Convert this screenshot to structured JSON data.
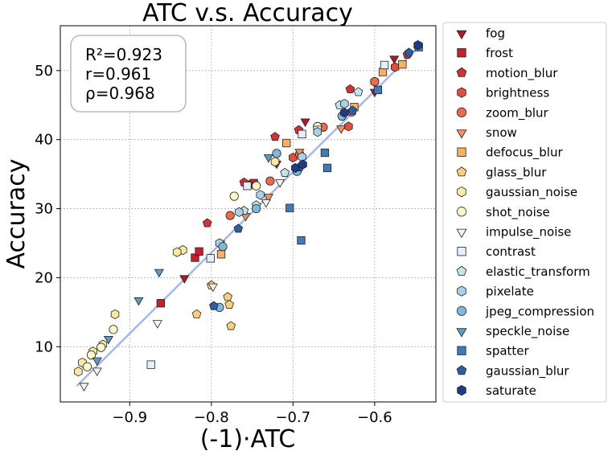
{
  "chart_data": {
    "type": "scatter",
    "title": "ATC  v.s.  Accuracy",
    "xlabel": "(-1)·ATC",
    "ylabel": "Accuracy",
    "xlim": [
      -0.985,
      -0.525
    ],
    "ylim": [
      2,
      56.5
    ],
    "xticks": [
      -0.9,
      -0.8,
      -0.7,
      -0.6
    ],
    "xtick_labels": [
      "−0.9",
      "−0.8",
      "−0.7",
      "−0.6"
    ],
    "yticks": [
      10,
      20,
      30,
      40,
      50
    ],
    "ytick_labels": [
      "10",
      "20",
      "30",
      "40",
      "50"
    ],
    "grid": true,
    "legend_position": "outside-right",
    "stats": [
      "R²=0.923",
      "r=0.961",
      "ρ=0.968"
    ],
    "fit_line": {
      "x": [
        -0.965,
        -0.545
      ],
      "y": [
        4.3,
        53.5
      ],
      "color": "#a3b7ec"
    },
    "series": [
      {
        "name": "fog",
        "marker": "triangle-down",
        "color": "#b2182b",
        "points": [
          [
            -0.833,
            20.0
          ],
          [
            -0.72,
            36.6
          ],
          [
            -0.685,
            42.7
          ],
          [
            -0.6,
            47.0
          ],
          [
            -0.576,
            51.8
          ]
        ]
      },
      {
        "name": "frost",
        "marker": "square",
        "color": "#c4202e",
        "points": [
          [
            -0.862,
            16.3
          ],
          [
            -0.82,
            22.9
          ],
          [
            -0.815,
            23.8
          ],
          [
            -0.753,
            33.5
          ],
          [
            -0.748,
            33.7
          ]
        ]
      },
      {
        "name": "motion_blur",
        "marker": "pentagon",
        "color": "#d4303a",
        "points": [
          [
            -0.805,
            27.9
          ],
          [
            -0.76,
            33.8
          ],
          [
            -0.722,
            40.4
          ],
          [
            -0.693,
            41.4
          ],
          [
            -0.63,
            47.3
          ],
          [
            -0.56,
            52.3
          ]
        ]
      },
      {
        "name": "brightness",
        "marker": "hexagon",
        "color": "#e04e3d",
        "points": [
          [
            -0.7,
            37.4
          ],
          [
            -0.67,
            41.7
          ],
          [
            -0.632,
            41.9
          ],
          [
            -0.6,
            48.4
          ],
          [
            -0.575,
            50.5
          ],
          [
            -0.547,
            53.6
          ]
        ]
      },
      {
        "name": "zoom_blur",
        "marker": "circle",
        "color": "#ed6a4a",
        "points": [
          [
            -0.777,
            29.0
          ],
          [
            -0.728,
            34.0
          ],
          [
            -0.692,
            37.9
          ],
          [
            -0.663,
            41.8
          ],
          [
            -0.628,
            44.0
          ],
          [
            -0.6,
            48.4
          ]
        ]
      },
      {
        "name": "snow",
        "marker": "triangle-down",
        "color": "#f3915c",
        "points": [
          [
            -0.789,
            25.0
          ],
          [
            -0.758,
            29.0
          ],
          [
            -0.73,
            31.8
          ],
          [
            -0.692,
            38.3
          ],
          [
            -0.641,
            41.7
          ]
        ]
      },
      {
        "name": "defocus_blur",
        "marker": "square",
        "color": "#f8b162",
        "points": [
          [
            -0.788,
            23.4
          ],
          [
            -0.708,
            39.5
          ],
          [
            -0.625,
            44.7
          ],
          [
            -0.59,
            49.8
          ],
          [
            -0.566,
            50.9
          ]
        ]
      },
      {
        "name": "glass_blur",
        "marker": "pentagon",
        "color": "#fbd07c",
        "points": [
          [
            -0.818,
            14.7
          ],
          [
            -0.78,
            17.2
          ],
          [
            -0.778,
            16.1
          ],
          [
            -0.776,
            13.0
          ],
          [
            -0.8,
            18.9
          ]
        ]
      },
      {
        "name": "gaussian_noise",
        "marker": "hexagon",
        "color": "#fde9a3",
        "points": [
          [
            -0.918,
            14.7
          ],
          [
            -0.945,
            9.3
          ],
          [
            -0.933,
            10.3
          ],
          [
            -0.963,
            6.4
          ],
          [
            -0.958,
            7.7
          ],
          [
            -0.835,
            24.0
          ],
          [
            -0.842,
            23.7
          ],
          [
            -0.722,
            36.8
          ]
        ]
      },
      {
        "name": "shot_noise",
        "marker": "circle",
        "color": "#fff8c9",
        "points": [
          [
            -0.952,
            7.1
          ],
          [
            -0.947,
            8.8
          ],
          [
            -0.935,
            9.9
          ],
          [
            -0.92,
            12.5
          ],
          [
            -0.772,
            31.8
          ],
          [
            -0.745,
            33.3
          ],
          [
            -0.67,
            41.9
          ]
        ]
      },
      {
        "name": "impulse_noise",
        "marker": "triangle-down",
        "color": "#f4f7e8",
        "points": [
          [
            -0.956,
            4.4
          ],
          [
            -0.94,
            6.6
          ],
          [
            -0.866,
            13.5
          ],
          [
            -0.798,
            18.8
          ],
          [
            -0.733,
            31.0
          ],
          [
            -0.716,
            33.9
          ]
        ]
      },
      {
        "name": "contrast",
        "marker": "square",
        "color": "#e3f0f7",
        "points": [
          [
            -0.874,
            7.4
          ],
          [
            -0.801,
            22.8
          ],
          [
            -0.756,
            33.3
          ],
          [
            -0.689,
            40.8
          ],
          [
            -0.67,
            41.4
          ],
          [
            -0.588,
            50.8
          ]
        ]
      },
      {
        "name": "elastic_transform",
        "marker": "pentagon",
        "color": "#c4e3ee",
        "points": [
          [
            -0.76,
            29.7
          ],
          [
            -0.745,
            30.5
          ],
          [
            -0.71,
            35.2
          ],
          [
            -0.643,
            45.0
          ],
          [
            -0.62,
            46.9
          ]
        ]
      },
      {
        "name": "pixelate",
        "marker": "hexagon",
        "color": "#a6d1e6",
        "points": [
          [
            -0.79,
            25.0
          ],
          [
            -0.766,
            29.5
          ],
          [
            -0.74,
            32.0
          ],
          [
            -0.689,
            37.5
          ],
          [
            -0.67,
            41.1
          ],
          [
            -0.637,
            45.2
          ]
        ]
      },
      {
        "name": "jpeg_compression",
        "marker": "circle",
        "color": "#7fb9d9",
        "points": [
          [
            -0.79,
            15.7
          ],
          [
            -0.786,
            24.5
          ],
          [
            -0.745,
            30.0
          ],
          [
            -0.72,
            38.0
          ],
          [
            -0.695,
            35.4
          ],
          [
            -0.64,
            43.4
          ]
        ]
      },
      {
        "name": "speckle_noise",
        "marker": "triangle-down",
        "color": "#5c9cc8",
        "points": [
          [
            -0.926,
            11.2
          ],
          [
            -0.94,
            8.1
          ],
          [
            -0.889,
            16.8
          ],
          [
            -0.864,
            20.9
          ],
          [
            -0.73,
            37.5
          ]
        ]
      },
      {
        "name": "spatter",
        "marker": "square",
        "color": "#3f7bb8",
        "points": [
          [
            -0.704,
            30.1
          ],
          [
            -0.69,
            25.4
          ],
          [
            -0.661,
            38.1
          ],
          [
            -0.658,
            35.9
          ],
          [
            -0.596,
            47.2
          ],
          [
            -0.546,
            53.4
          ]
        ]
      },
      {
        "name": "gaussian_blur",
        "marker": "pentagon",
        "color": "#2d5da7",
        "points": [
          [
            -0.797,
            15.9
          ],
          [
            -0.767,
            27.1
          ],
          [
            -0.692,
            36.0
          ],
          [
            -0.627,
            44.2
          ],
          [
            -0.558,
            52.6
          ]
        ]
      },
      {
        "name": "saturate",
        "marker": "hexagon",
        "color": "#1e3a8a",
        "points": [
          [
            -0.697,
            35.9
          ],
          [
            -0.688,
            36.4
          ],
          [
            -0.637,
            43.9
          ],
          [
            -0.547,
            53.7
          ]
        ]
      }
    ]
  }
}
